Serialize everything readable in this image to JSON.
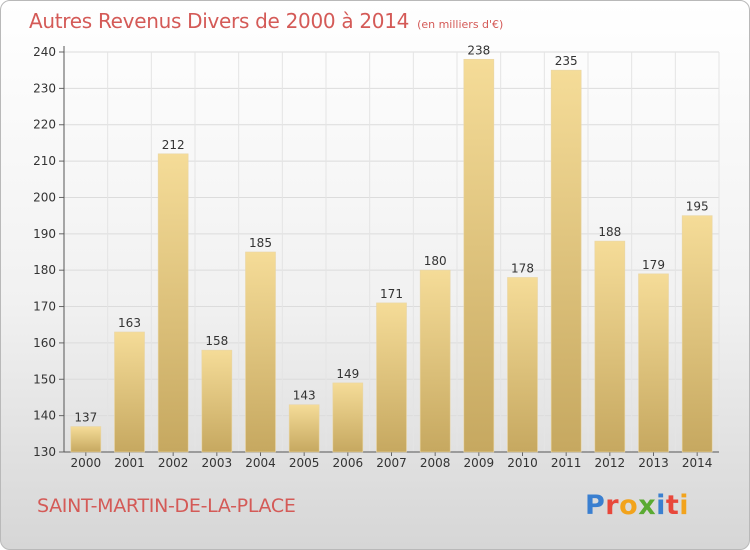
{
  "header": {
    "title": "Autres Revenus Divers de 2000 à 2014",
    "subtitle": "(en milliers d'€)"
  },
  "footer": {
    "place": "SAINT-MARTIN-DE-LA-PLACE",
    "logo_text": "Proxiti"
  },
  "colors": {
    "title": "#d45a57",
    "bar_light": "#f5dc98",
    "bar_dark": "#c6a860",
    "logo_letters": [
      "#3a7fd0",
      "#e8473b",
      "#f2a31c",
      "#5aaa32",
      "#3a7fd0",
      "#e8473b",
      "#f2a31c"
    ]
  },
  "chart_data": {
    "type": "bar",
    "categories": [
      "2000",
      "2001",
      "2002",
      "2003",
      "2004",
      "2005",
      "2006",
      "2007",
      "2008",
      "2009",
      "2010",
      "2011",
      "2012",
      "2013",
      "2014"
    ],
    "values": [
      137,
      163,
      212,
      158,
      185,
      143,
      149,
      171,
      180,
      238,
      178,
      235,
      188,
      179,
      195
    ],
    "ylim": [
      130,
      240
    ],
    "yticks": [
      130,
      140,
      150,
      160,
      170,
      180,
      190,
      200,
      210,
      220,
      230,
      240
    ],
    "grid": true,
    "data_labels": true
  }
}
